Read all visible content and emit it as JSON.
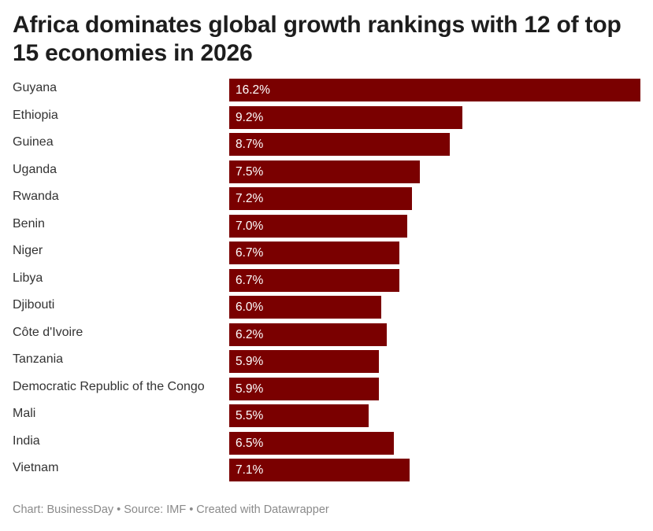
{
  "chart_data": {
    "type": "bar",
    "orientation": "horizontal",
    "title": "Africa dominates global growth rankings with 12 of top 15 economies in 2026",
    "categories": [
      "Guyana",
      "Ethiopia",
      "Guinea",
      "Uganda",
      "Rwanda",
      "Benin",
      "Niger",
      "Libya",
      "Djibouti",
      "Côte d'Ivoire",
      "Tanzania",
      "Democratic Republic of the Congo",
      "Mali",
      "India",
      "Vietnam"
    ],
    "values": [
      16.2,
      9.2,
      8.7,
      7.5,
      7.2,
      7.0,
      6.7,
      6.7,
      6.0,
      6.2,
      5.9,
      5.9,
      5.5,
      6.5,
      7.1
    ],
    "value_labels": [
      "16.2%",
      "9.2%",
      "8.7%",
      "7.5%",
      "7.2%",
      "7.0%",
      "6.7%",
      "6.7%",
      "6.0%",
      "6.2%",
      "5.9%",
      "5.9%",
      "5.5%",
      "6.5%",
      "7.1%"
    ],
    "xlim": [
      0,
      16.2
    ],
    "bar_color": "#7a0000",
    "grid": false
  },
  "footer": {
    "chart_credit": "Chart: BusinessDay",
    "source": "Source: IMF",
    "created_with": "Created with Datawrapper",
    "separator": "•"
  }
}
